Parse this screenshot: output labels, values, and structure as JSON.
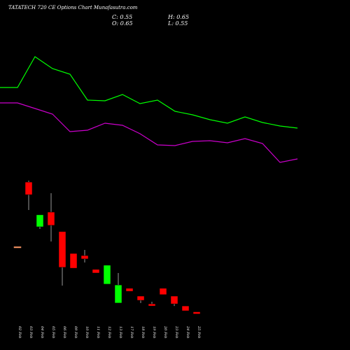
{
  "chart_data": [
    {
      "type": "candlestick",
      "title": "TATATECH 720 CE Options Chart Munafasutra.com",
      "ohlc_text": {
        "c": "C: 0.55",
        "h": "H: 0.65",
        "o": "O: 0.65",
        "l": "L: 0.55"
      },
      "categories": [
        "02 Feb",
        "03 Feb",
        "04 Feb",
        "05 Feb",
        "06 Feb",
        "09 Feb",
        "10 Feb",
        "11 Feb",
        "12 Feb",
        "13 Feb",
        "17 Feb",
        "18 Feb",
        "19 Feb",
        "20 Feb",
        "23 Feb",
        "24 Feb",
        "25 Feb"
      ],
      "open": [
        3.75,
        6.83,
        4.7,
        5.4,
        4.47,
        3.43,
        3.33,
        2.67,
        1.97,
        1.07,
        1.77,
        1.4,
        1.03,
        1.77,
        1.4,
        0.93,
        0.65
      ],
      "high": [
        3.75,
        6.9,
        5.27,
        6.3,
        4.47,
        3.43,
        3.6,
        2.67,
        2.87,
        2.5,
        1.77,
        1.4,
        1.13,
        1.77,
        1.4,
        0.93,
        0.65
      ],
      "low": [
        3.75,
        5.5,
        4.6,
        4.0,
        1.9,
        2.73,
        3.0,
        2.5,
        1.97,
        1.07,
        1.63,
        1.07,
        0.93,
        1.47,
        0.93,
        0.7,
        0.55
      ],
      "close": [
        3.75,
        6.23,
        5.27,
        4.77,
        2.77,
        2.73,
        3.17,
        2.5,
        2.87,
        1.93,
        1.63,
        1.2,
        0.93,
        1.47,
        1.03,
        0.7,
        0.55
      ],
      "up_color": "#00ff00",
      "down_color": "#ff0000",
      "flat_color": "#ff9966",
      "ylim": [
        0,
        7.2
      ]
    },
    {
      "type": "line",
      "series": [
        {
          "color": "#00ff00",
          "values": [
            375,
            375,
            419,
            402,
            394,
            357,
            356,
            365,
            352,
            357,
            341,
            336,
            329,
            324,
            333,
            325,
            320,
            317
          ]
        },
        {
          "color": "#cc00cc",
          "values": [
            353,
            353,
            345,
            337,
            312,
            314,
            324,
            321,
            309,
            293,
            292,
            298,
            299,
            296,
            302,
            295,
            268,
            273
          ]
        }
      ],
      "ylim": [
        250,
        450
      ]
    }
  ]
}
